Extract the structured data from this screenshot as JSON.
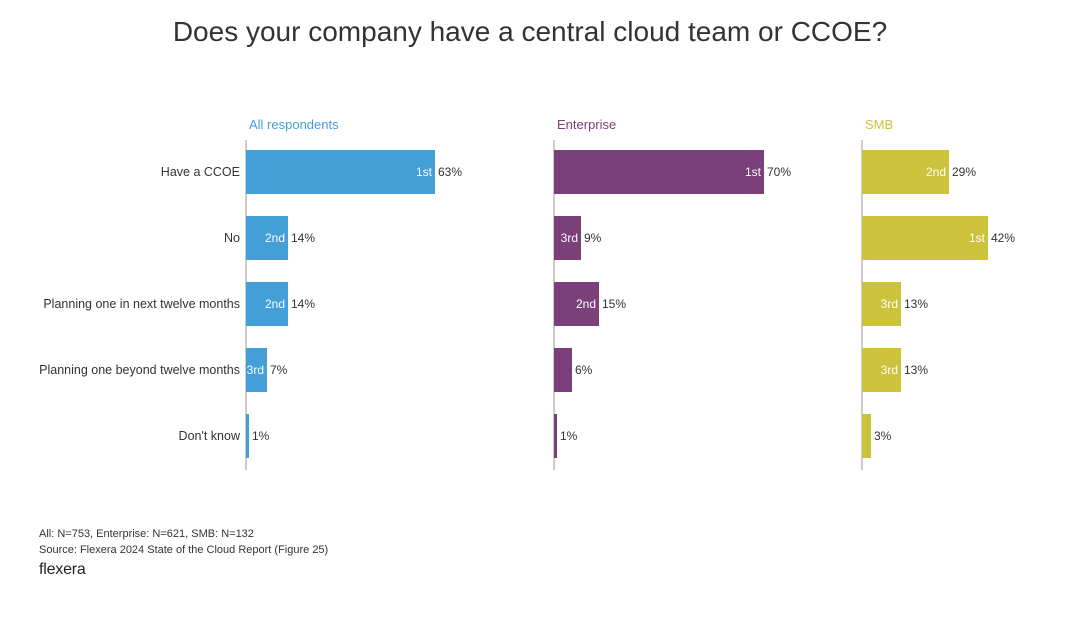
{
  "title": "Does your company have a central cloud team or CCOE?",
  "chart_data": {
    "type": "bar",
    "orientation": "horizontal",
    "title": "Does your company have a central cloud team or CCOE?",
    "categories": [
      "Have a CCOE",
      "No",
      "Planning one in next twelve months",
      "Planning one beyond twelve months",
      "Don't know"
    ],
    "value_suffix": "%",
    "series": [
      {
        "name": "All respondents",
        "color": "#449ed8",
        "values": [
          63,
          14,
          14,
          7,
          1
        ],
        "ranks": [
          "1st",
          "2nd",
          "2nd",
          "3rd",
          ""
        ]
      },
      {
        "name": "Enterprise",
        "color": "#7b3f7a",
        "values": [
          70,
          9,
          15,
          6,
          1
        ],
        "ranks": [
          "1st",
          "3rd",
          "2nd",
          "",
          ""
        ]
      },
      {
        "name": "SMB",
        "color": "#cdc23c",
        "values": [
          29,
          42,
          13,
          13,
          3
        ],
        "ranks": [
          "2nd",
          "1st",
          "3rd",
          "3rd",
          ""
        ]
      }
    ]
  },
  "footer": {
    "sample": "All: N=753, Enterprise: N=621, SMB: N=132",
    "source": "Source: Flexera 2024 State of the Cloud Report (Figure 25)",
    "logo": "flexera"
  }
}
